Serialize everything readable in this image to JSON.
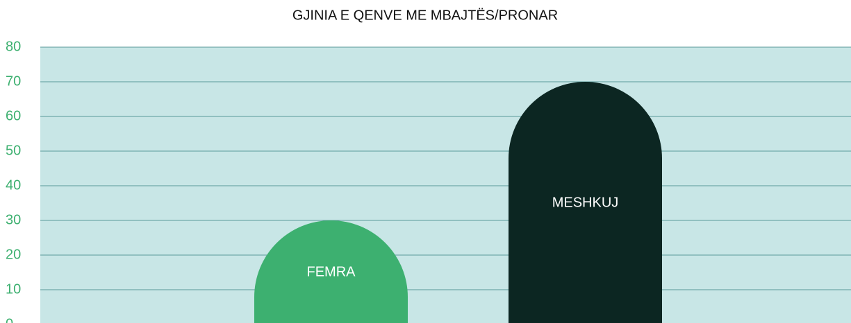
{
  "chart_data": {
    "type": "bar",
    "title": "GJINIA E QENVE ME MBAJTËS/PRONAR",
    "categories": [
      "FEMRA",
      "MESHKUJ"
    ],
    "values": [
      30,
      70
    ],
    "colors": [
      "#3db070",
      "#0c2622"
    ],
    "label_colors": [
      "#ffffff",
      "#ffffff"
    ],
    "ylim": [
      0,
      80
    ],
    "yticks": [
      0,
      10,
      20,
      30,
      40,
      50,
      60,
      70,
      80
    ],
    "grid": true
  }
}
